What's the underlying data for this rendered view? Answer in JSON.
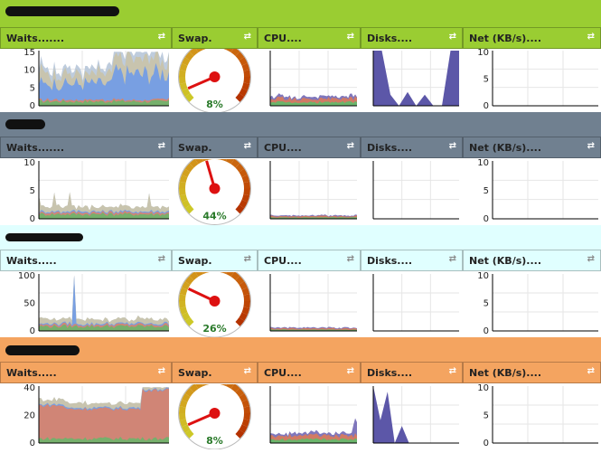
{
  "colors": {
    "green": "#9acd32",
    "slate": "#708090",
    "lightcyan": "#e0ffff",
    "orange": "#f4a460"
  },
  "groups": [
    {
      "header_color": "#9acd32",
      "columns": [
        "Waits.......",
        "Swap.",
        "CPU....",
        "Disks....",
        "Net (KB/s)...."
      ],
      "waits_ticks": [
        "15",
        "10",
        "5",
        "0"
      ],
      "swap_percent": 8,
      "swap_label": "8%",
      "net_ticks": [
        "10",
        "5",
        "0"
      ]
    },
    {
      "header_color": "#708090",
      "columns": [
        "Waits.......",
        "Swap.",
        "CPU....",
        "Disks....",
        "Net (KB/s)...."
      ],
      "waits_ticks": [
        "10",
        "5",
        "0"
      ],
      "swap_percent": 44,
      "swap_label": "44%",
      "net_ticks": [
        "10",
        "5",
        "0"
      ]
    },
    {
      "header_color": "#e0ffff",
      "columns": [
        "Waits.....",
        "Swap.",
        "CPU....",
        "Disks....",
        "Net (KB/s)...."
      ],
      "waits_ticks": [
        "100",
        "50",
        "0"
      ],
      "swap_percent": 26,
      "swap_label": "26%",
      "net_ticks": [
        "10",
        "5",
        "0"
      ]
    },
    {
      "header_color": "#f4a460",
      "columns": [
        "Waits.....",
        "Swap.",
        "CPU....",
        "Disks....",
        "Net (KB/s)...."
      ],
      "waits_ticks": [
        "40",
        "20",
        "0"
      ],
      "swap_percent": 8,
      "swap_label": "8%",
      "net_ticks": [
        "10",
        "5",
        "0"
      ]
    }
  ]
}
